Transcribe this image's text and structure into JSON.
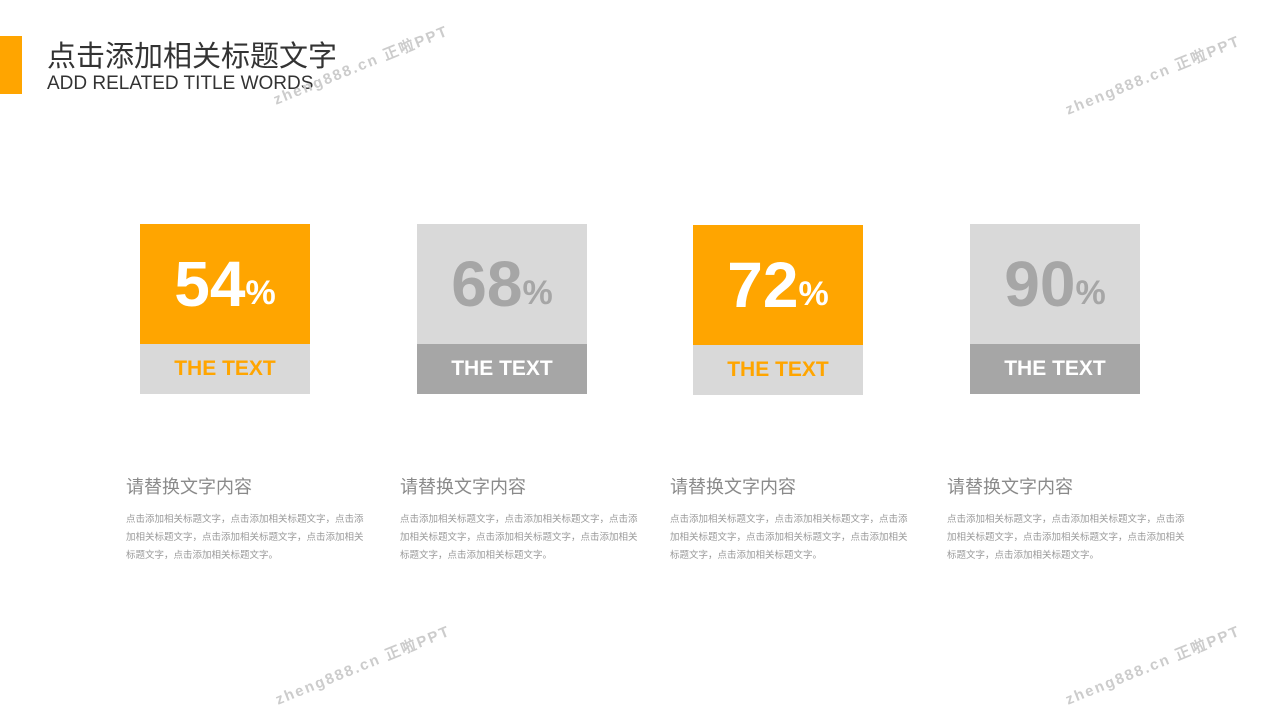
{
  "header": {
    "title": "点击添加相关标题文字",
    "subtitle": "ADD RELATED TITLE WORDS"
  },
  "colors": {
    "accent": "#FFA500",
    "gray_light": "#D9D9D9",
    "gray_dark": "#A6A6A6"
  },
  "cards": [
    {
      "value": "54",
      "unit": "%",
      "label": "THE TEXT",
      "style": "orange"
    },
    {
      "value": "68",
      "unit": "%",
      "label": "THE TEXT",
      "style": "gray"
    },
    {
      "value": "72",
      "unit": "%",
      "label": "THE TEXT",
      "style": "orange"
    },
    {
      "value": "90",
      "unit": "%",
      "label": "THE TEXT",
      "style": "gray"
    }
  ],
  "columns": [
    {
      "heading": "请替换文字内容",
      "body": "点击添加相关标题文字，点击添加相关标题文字，点击添加相关标题文字，点击添加相关标题文字，点击添加相关标题文字，点击添加相关标题文字。"
    },
    {
      "heading": "请替换文字内容",
      "body": "点击添加相关标题文字，点击添加相关标题文字，点击添加相关标题文字，点击添加相关标题文字，点击添加相关标题文字，点击添加相关标题文字。"
    },
    {
      "heading": "请替换文字内容",
      "body": "点击添加相关标题文字，点击添加相关标题文字，点击添加相关标题文字，点击添加相关标题文字，点击添加相关标题文字，点击添加相关标题文字。"
    },
    {
      "heading": "请替换文字内容",
      "body": "点击添加相关标题文字，点击添加相关标题文字，点击添加相关标题文字，点击添加相关标题文字，点击添加相关标题文字，点击添加相关标题文字。"
    }
  ],
  "watermark": "zheng888.cn 正啦PPT"
}
